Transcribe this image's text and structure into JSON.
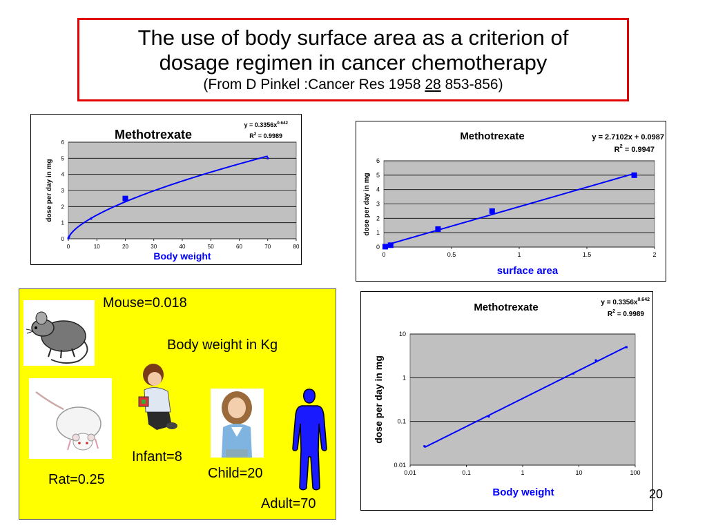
{
  "slide": {
    "title_line1": "The use of body surface area as a criterion of",
    "title_line2": "dosage regimen in cancer chemotherapy",
    "source_prefix": "(From D Pinkel :Cancer Res 1958 ",
    "source_volume": "28",
    "source_suffix": " 853-856)",
    "page_number": "20"
  },
  "species": {
    "mouse": "Mouse=0.018",
    "header": "Body weight in Kg",
    "rat": "Rat=0.25",
    "infant": "Infant=8",
    "child": "Child=20",
    "adult": "Adult=70"
  },
  "chart_data": [
    {
      "type": "scatter",
      "title": "Methotrexate",
      "equation": "y = 0.3356x",
      "equation_exp": "0.642",
      "r2": "R",
      "r2_sup": "2",
      "r2_value": " = 0.9989",
      "xlabel": "Body weight",
      "ylabel": "dose per day in mg",
      "xlim": [
        0,
        80
      ],
      "ylim": [
        0,
        6
      ],
      "xticks": [
        "0",
        "10",
        "20",
        "30",
        "40",
        "50",
        "60",
        "70",
        "80"
      ],
      "yticks": [
        "0",
        "1",
        "2",
        "3",
        "4",
        "5",
        "6"
      ],
      "series": [
        {
          "x": [
            0.018,
            0.25,
            8,
            20,
            70
          ],
          "values": [
            0.027,
            0.13,
            1.25,
            2.5,
            5.0
          ]
        }
      ],
      "trendline": {
        "type": "power",
        "a": 0.3356,
        "b": 0.642
      },
      "grid": true
    },
    {
      "type": "scatter",
      "title": "Methotrexate",
      "equation": "y = 2.7102x + 0.0987",
      "equation_exp": "",
      "r2": "R",
      "r2_sup": "2",
      "r2_value": " = 0.9947",
      "xlabel": "surface area",
      "ylabel": "dose per day in mg",
      "xlim": [
        0,
        2
      ],
      "ylim": [
        0,
        6
      ],
      "xticks": [
        "0",
        "0.5",
        "1",
        "1.5",
        "2"
      ],
      "yticks": [
        "0",
        "1",
        "2",
        "3",
        "4",
        "5",
        "6"
      ],
      "series": [
        {
          "x": [
            0.01,
            0.05,
            0.4,
            0.8,
            1.85
          ],
          "values": [
            0.027,
            0.13,
            1.25,
            2.5,
            5.0
          ]
        }
      ],
      "trendline": {
        "type": "linear",
        "a": 2.7102,
        "b": 0.0987
      },
      "grid": true
    },
    {
      "type": "scatter",
      "title": "Methotrexate",
      "equation": "y = 0.3356x",
      "equation_exp": "0.642",
      "r2": "R",
      "r2_sup": "2",
      "r2_value": " = 0.9989",
      "xlabel": "Body weight",
      "ylabel": "dose per day in mg",
      "xlim": [
        0.01,
        100
      ],
      "ylim": [
        0.01,
        10
      ],
      "xscale": "log",
      "yscale": "log",
      "xticks": [
        "0.01",
        "0.1",
        "1",
        "10",
        "100"
      ],
      "yticks": [
        "0.01",
        "0.1",
        "1",
        "10"
      ],
      "series": [
        {
          "x": [
            0.018,
            0.25,
            8,
            20,
            70
          ],
          "values": [
            0.027,
            0.13,
            1.25,
            2.5,
            5.0
          ]
        }
      ],
      "trendline": {
        "type": "power",
        "a": 0.3356,
        "b": 0.642
      },
      "grid": true
    }
  ],
  "colors": {
    "plot_bg": "#c0c0c0",
    "series": "#0000ff",
    "axis_label": "#0000ff",
    "title_border": "#e00000",
    "panel_bg": "#ffff00"
  }
}
